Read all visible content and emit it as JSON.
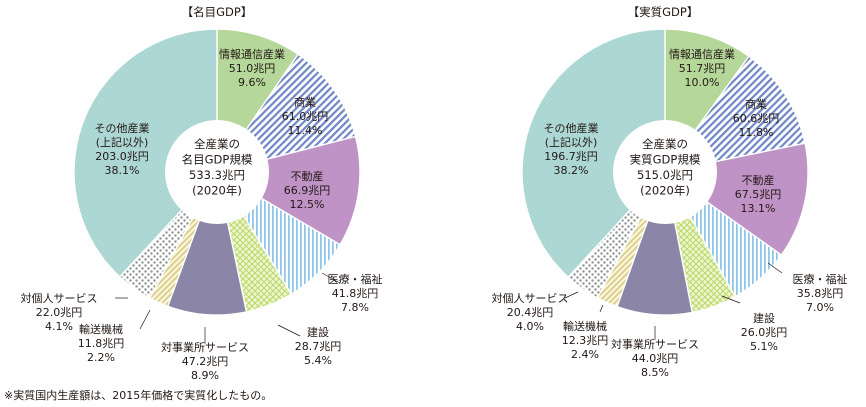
{
  "note": "※実質国内生産額は、2015年価格で実質化したもの。",
  "colors": {
    "info": "#b5d79a",
    "commerce": "#6f86c7",
    "realestate": "#bf93c6",
    "construction": "#d8ec9a",
    "medical": "#8fc6ea",
    "business": "#8b86a8",
    "transport": "#d9cd86",
    "personal": "#a6a9ab",
    "other": "#a9d5d2"
  },
  "chart_data": [
    {
      "type": "pie",
      "title": "【名目GDP】",
      "center": [
        "全産業の",
        "名目GDP規模",
        "533.3兆円",
        "(2020年)"
      ],
      "slices": [
        {
          "key": "info",
          "lines": [
            "情報通信産業",
            "51.0兆円",
            "9.6%"
          ],
          "value": 9.6
        },
        {
          "key": "commerce",
          "lines": [
            "商業",
            "61.0兆円",
            "11.4%"
          ],
          "value": 11.4
        },
        {
          "key": "realestate",
          "lines": [
            "不動産",
            "66.9兆円",
            "12.5%"
          ],
          "value": 12.5
        },
        {
          "key": "medical",
          "lines": [
            "医療・福祉",
            "41.8兆円",
            "7.8%"
          ],
          "value": 7.8
        },
        {
          "key": "construction",
          "lines": [
            "建設",
            "28.7兆円",
            "5.4%"
          ],
          "value": 5.4
        },
        {
          "key": "business",
          "lines": [
            "対事業所サービス",
            "47.2兆円",
            "8.9%"
          ],
          "value": 8.9
        },
        {
          "key": "transport",
          "lines": [
            "輸送機械",
            "11.8兆円",
            "2.2%"
          ],
          "value": 2.2
        },
        {
          "key": "personal",
          "lines": [
            "対個人サービス",
            "22.0兆円",
            "4.1%"
          ],
          "value": 4.1
        },
        {
          "key": "other",
          "lines": [
            "その他産業",
            "(上記以外)",
            "203.0兆円",
            "38.1%"
          ],
          "value": 38.1
        }
      ]
    },
    {
      "type": "pie",
      "title": "【実質GDP】",
      "center": [
        "全産業の",
        "実質GDP規模",
        "515.0兆円",
        "(2020年)"
      ],
      "slices": [
        {
          "key": "info",
          "lines": [
            "情報通信産業",
            "51.7兆円",
            "10.0%"
          ],
          "value": 10.0
        },
        {
          "key": "commerce",
          "lines": [
            "商業",
            "60.6兆円",
            "11.8%"
          ],
          "value": 11.8
        },
        {
          "key": "realestate",
          "lines": [
            "不動産",
            "67.5兆円",
            "13.1%"
          ],
          "value": 13.1
        },
        {
          "key": "medical",
          "lines": [
            "医療・福祉",
            "35.8兆円",
            "7.0%"
          ],
          "value": 7.0
        },
        {
          "key": "construction",
          "lines": [
            "建設",
            "26.0兆円",
            "5.1%"
          ],
          "value": 5.1
        },
        {
          "key": "business",
          "lines": [
            "対事業所サービス",
            "44.0兆円",
            "8.5%"
          ],
          "value": 8.5
        },
        {
          "key": "transport",
          "lines": [
            "輸送機械",
            "12.3兆円",
            "2.4%"
          ],
          "value": 2.4
        },
        {
          "key": "personal",
          "lines": [
            "対個人サービス",
            "20.4兆円",
            "4.0%"
          ],
          "value": 4.0
        },
        {
          "key": "other",
          "lines": [
            "その他産業",
            "(上記以外)",
            "196.7兆円",
            "38.2%"
          ],
          "value": 38.2
        }
      ]
    }
  ]
}
